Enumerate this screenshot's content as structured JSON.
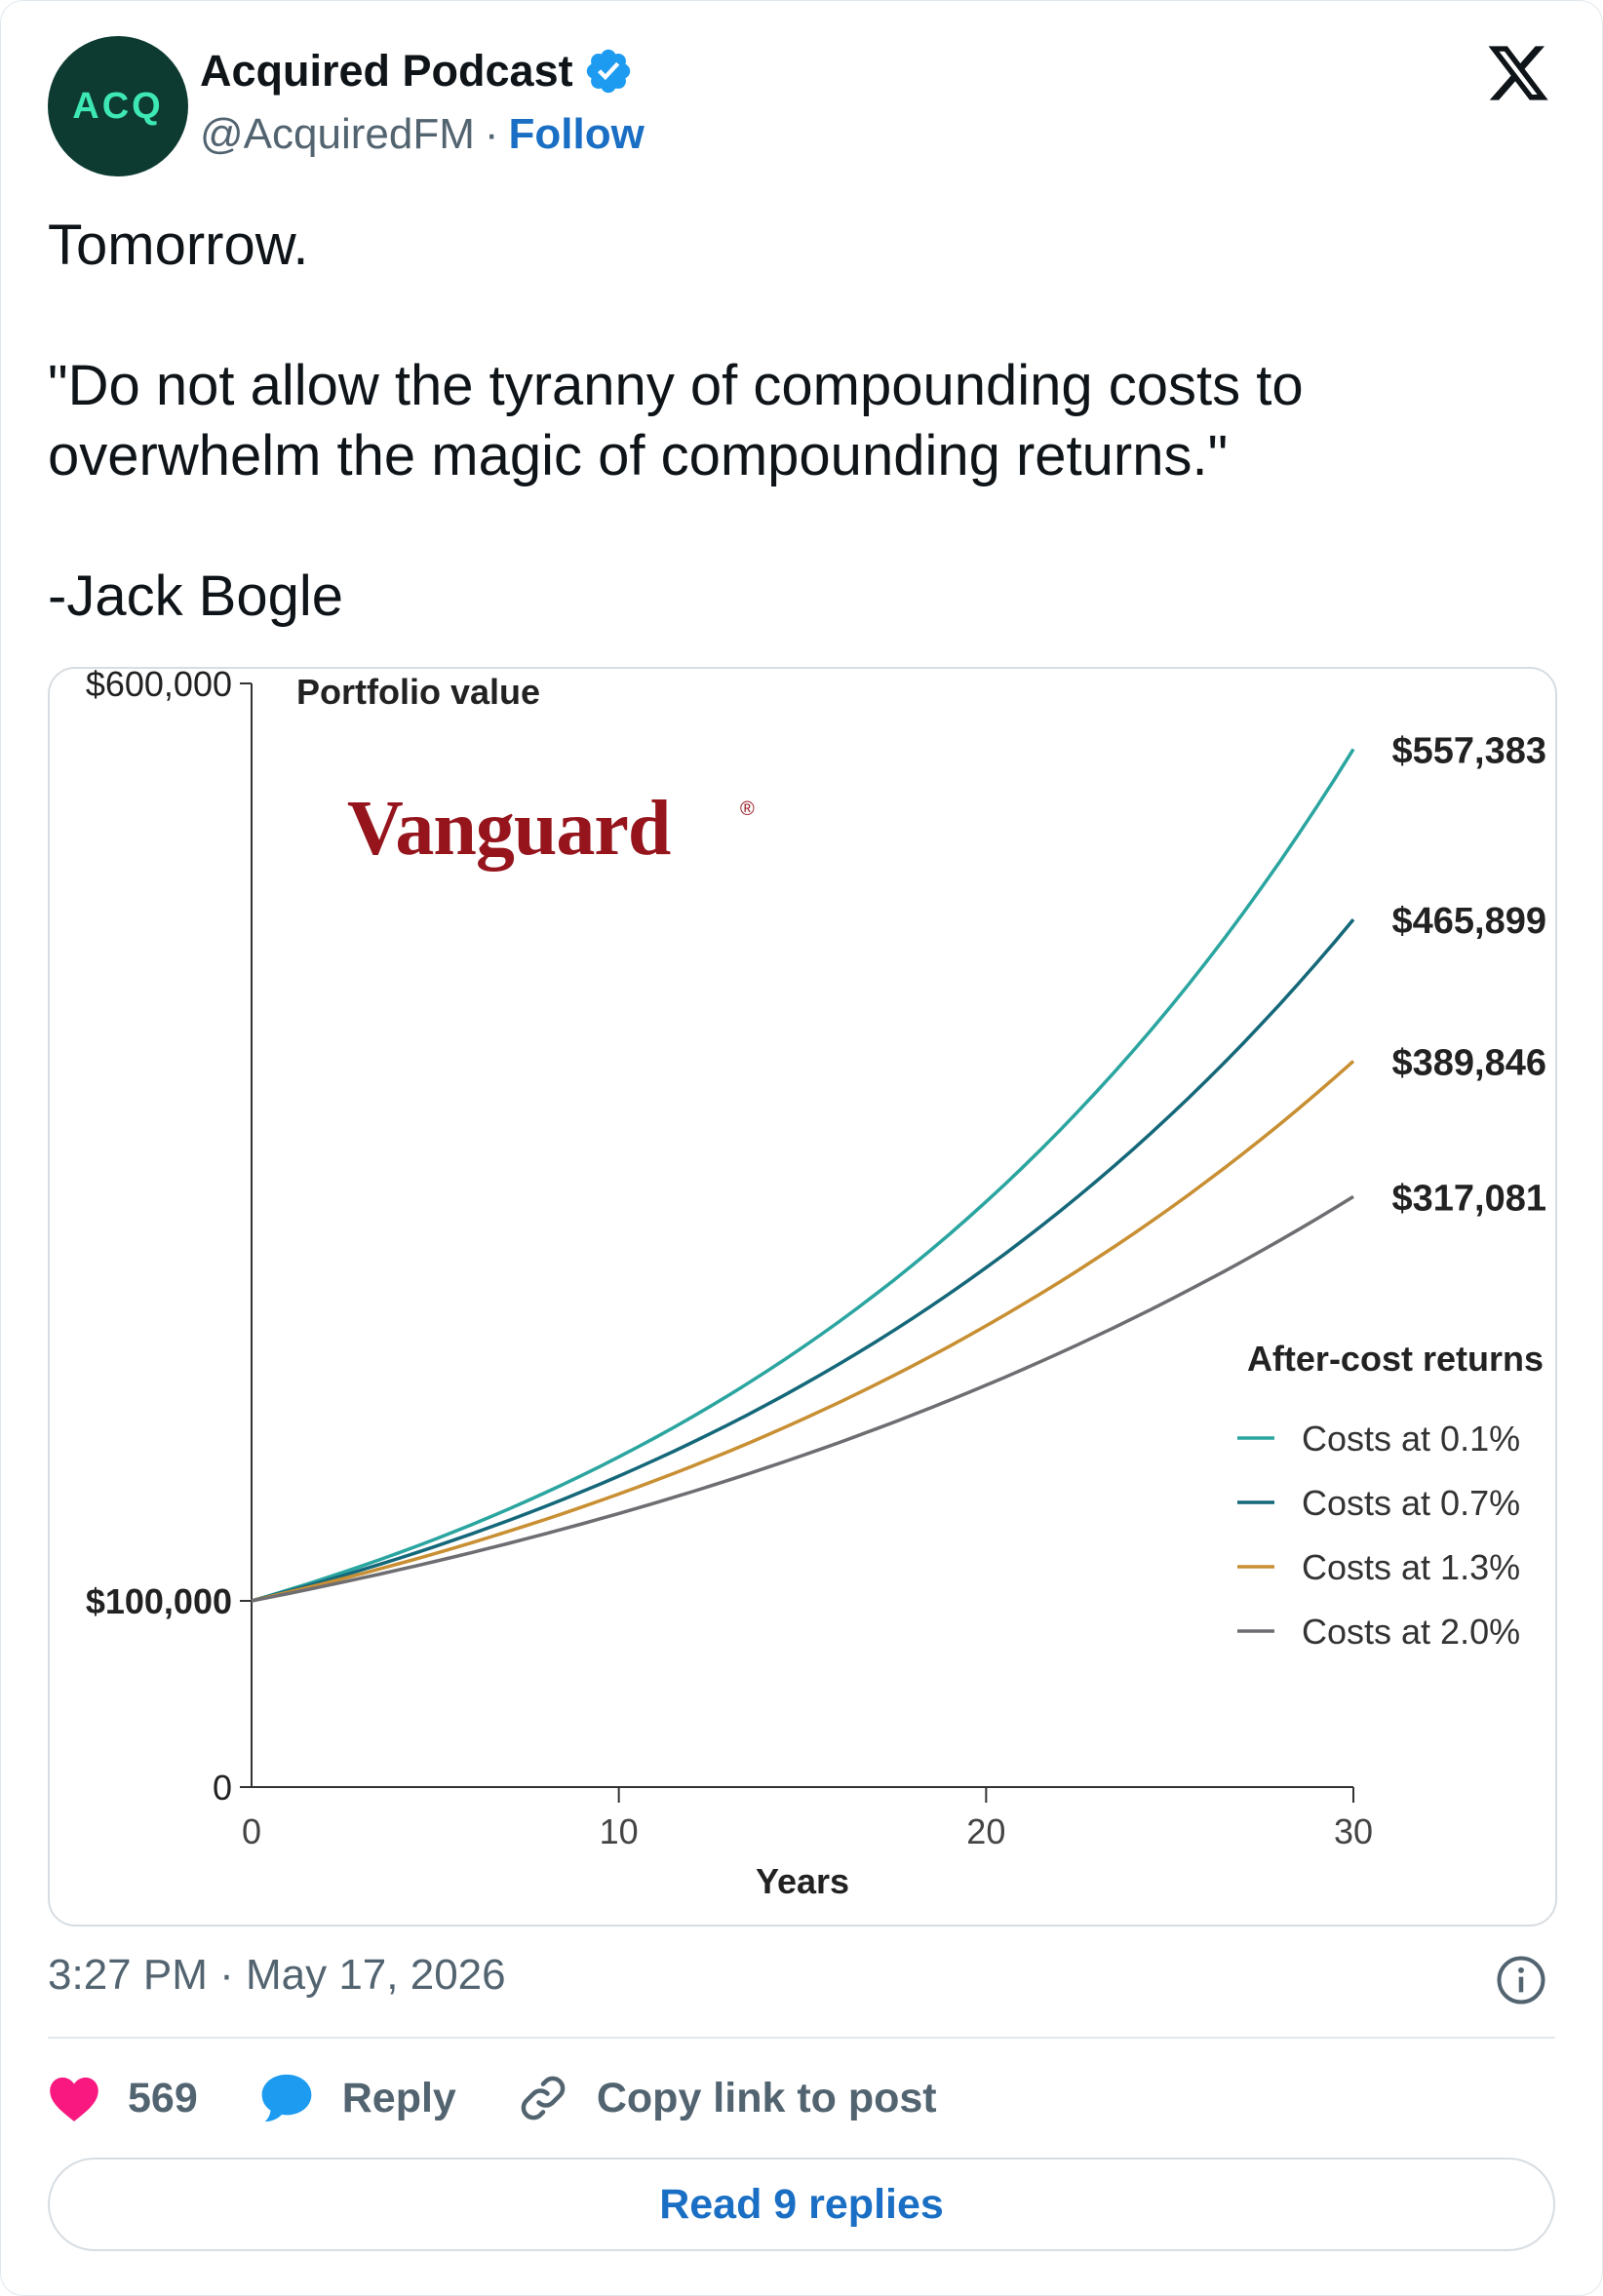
{
  "author": {
    "avatar_text": "ACQ",
    "name": "Acquired Podcast",
    "handle": "@AcquiredFM",
    "separator": "·",
    "follow_label": "Follow"
  },
  "tweet": {
    "text": "Tomorrow.\n\n\"Do not allow the tyranny of compounding costs to overwhelm the magic of compounding returns.\"\n\n-Jack Bogle"
  },
  "chart_image": {
    "brand": "Vanguard",
    "brand_mark": "®"
  },
  "chart_data": {
    "type": "line",
    "title": "Portfolio value",
    "xlabel": "Years",
    "ylabel": "",
    "xlim": [
      0,
      30
    ],
    "ylim": [
      0,
      600000
    ],
    "x_ticks": [
      "0",
      "10",
      "20",
      "30"
    ],
    "y_ticks": [
      {
        "value": 600000,
        "label": "$600,000"
      },
      {
        "value": 100000,
        "label": "$100,000"
      },
      {
        "value": 0,
        "label": "0"
      }
    ],
    "legend_title": "After-cost returns",
    "legend_position": "right",
    "start_value": 100000,
    "series": [
      {
        "name": "Costs at 0.1%",
        "color": "#2ba5a0",
        "end_label": "$557,383",
        "values": [
          [
            0,
            100000
          ],
          [
            5,
            133000
          ],
          [
            10,
            177000
          ],
          [
            15,
            236000
          ],
          [
            20,
            315000
          ],
          [
            25,
            419000
          ],
          [
            30,
            557383
          ]
        ]
      },
      {
        "name": "Costs at 0.7%",
        "color": "#14687a",
        "end_label": "$465,899",
        "values": [
          [
            0,
            100000
          ],
          [
            5,
            129500
          ],
          [
            10,
            167500
          ],
          [
            15,
            217000
          ],
          [
            20,
            281000
          ],
          [
            25,
            363000
          ],
          [
            30,
            465899
          ]
        ]
      },
      {
        "name": "Costs at 1.3%",
        "color": "#c88f33",
        "end_label": "$389,846",
        "values": [
          [
            0,
            100000
          ],
          [
            5,
            126000
          ],
          [
            10,
            158500
          ],
          [
            15,
            199500
          ],
          [
            20,
            251000
          ],
          [
            25,
            316000
          ],
          [
            30,
            389846
          ]
        ]
      },
      {
        "name": "Costs at 2.0%",
        "color": "#6e6e72",
        "end_label": "$317,081",
        "values": [
          [
            0,
            100000
          ],
          [
            5,
            121000
          ],
          [
            10,
            148000
          ],
          [
            15,
            179000
          ],
          [
            20,
            218000
          ],
          [
            25,
            262000
          ],
          [
            30,
            317081
          ]
        ]
      }
    ]
  },
  "meta": {
    "time": "3:27 PM",
    "separator": " · ",
    "date": "May 17, 2026"
  },
  "actions": {
    "like_count": "569",
    "reply_label": "Reply",
    "copy_label": "Copy link to post",
    "like_color": "#f91880",
    "reply_color": "#1d9bf0"
  },
  "read_replies_label": "Read 9 replies"
}
